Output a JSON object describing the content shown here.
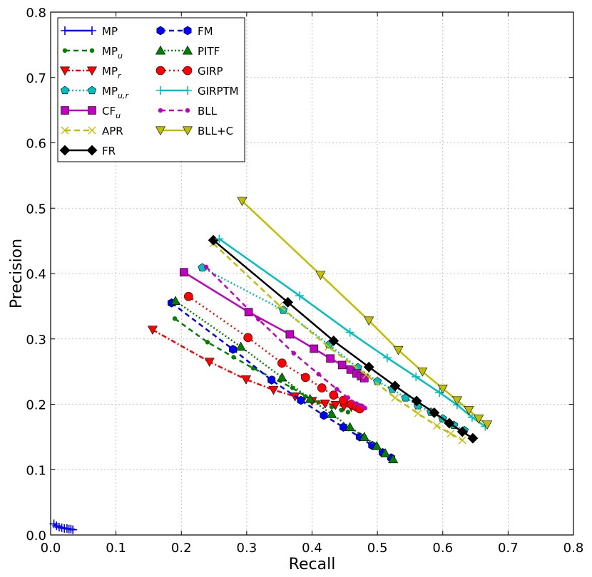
{
  "chart_data": {
    "type": "line",
    "title": "",
    "xlabel": "Recall",
    "ylabel": "Precision",
    "xlim": [
      0,
      0.8
    ],
    "ylim": [
      0,
      0.8
    ],
    "xticks": [
      "0.0",
      "0.1",
      "0.2",
      "0.3",
      "0.4",
      "0.5",
      "0.6",
      "0.7",
      "0.8"
    ],
    "yticks": [
      "0.0",
      "0.1",
      "0.2",
      "0.3",
      "0.4",
      "0.5",
      "0.6",
      "0.7",
      "0.8"
    ],
    "grid": true,
    "legend_position": "top-left",
    "series": [
      {
        "name": "MP",
        "base": "MP",
        "sub": "",
        "color": "#0000ff",
        "dash": "",
        "marker": "plus",
        "x": [
          0.005,
          0.009,
          0.013,
          0.017,
          0.021,
          0.025,
          0.028,
          0.031,
          0.034
        ],
        "y": [
          0.017,
          0.014,
          0.012,
          0.011,
          0.01,
          0.01,
          0.009,
          0.009,
          0.008
        ]
      },
      {
        "name": "MP_u",
        "base": "MP",
        "sub": "u",
        "color": "#008000",
        "dash": "7 5",
        "marker": "circle-small",
        "x": [
          0.19,
          0.24,
          0.28,
          0.31,
          0.34,
          0.37,
          0.39,
          0.41,
          0.43,
          0.445,
          0.455
        ],
        "y": [
          0.331,
          0.295,
          0.272,
          0.255,
          0.24,
          0.225,
          0.212,
          0.203,
          0.196,
          0.191,
          0.188
        ]
      },
      {
        "name": "MP_r",
        "base": "MP",
        "sub": "r",
        "color": "#ff0000",
        "dash": "7 3 2 3",
        "marker": "triangle-down",
        "x": [
          0.156,
          0.243,
          0.299,
          0.341,
          0.374,
          0.4,
          0.42,
          0.436,
          0.449,
          0.46,
          0.47
        ],
        "y": [
          0.314,
          0.265,
          0.238,
          0.222,
          0.212,
          0.205,
          0.201,
          0.199,
          0.197,
          0.196,
          0.195
        ]
      },
      {
        "name": "MP_u,r",
        "base": "MP",
        "sub": "u,r",
        "color": "#00bfbf",
        "dash": "2 3",
        "marker": "pentagon",
        "x": [
          0.232,
          0.356,
          0.426,
          0.47,
          0.5,
          0.523,
          0.543,
          0.562,
          0.582,
          0.6,
          0.617,
          0.633
        ],
        "y": [
          0.409,
          0.344,
          0.291,
          0.256,
          0.235,
          0.223,
          0.21,
          0.198,
          0.188,
          0.178,
          0.168,
          0.16
        ]
      },
      {
        "name": "CF_u",
        "base": "CF",
        "sub": "u",
        "color": "#bf00bf",
        "dash": "",
        "marker": "square",
        "x": [
          0.204,
          0.303,
          0.366,
          0.403,
          0.428,
          0.446,
          0.459,
          0.468,
          0.475,
          0.48
        ],
        "y": [
          0.402,
          0.341,
          0.307,
          0.285,
          0.27,
          0.26,
          0.253,
          0.247,
          0.243,
          0.24
        ]
      },
      {
        "name": "APR",
        "base": "APR",
        "sub": "",
        "color": "#bfbf00",
        "dash": "8 5",
        "marker": "x",
        "x": [
          0.249,
          0.35,
          0.425,
          0.483,
          0.527,
          0.562,
          0.591,
          0.612,
          0.63
        ],
        "y": [
          0.446,
          0.351,
          0.288,
          0.245,
          0.21,
          0.186,
          0.167,
          0.155,
          0.145
        ]
      },
      {
        "name": "FR",
        "base": "FR",
        "sub": "",
        "color": "#000000",
        "dash": "",
        "marker": "diamond",
        "x": [
          0.249,
          0.363,
          0.433,
          0.487,
          0.527,
          0.56,
          0.587,
          0.61,
          0.63,
          0.646
        ],
        "y": [
          0.451,
          0.356,
          0.297,
          0.257,
          0.228,
          0.205,
          0.187,
          0.171,
          0.158,
          0.148
        ]
      },
      {
        "name": "FM",
        "base": "FM",
        "sub": "",
        "color": "#0000ff",
        "dash": "7 5",
        "marker": "hexagon",
        "x": [
          0.185,
          0.279,
          0.338,
          0.383,
          0.418,
          0.448,
          0.473,
          0.492,
          0.508,
          0.521
        ],
        "y": [
          0.355,
          0.284,
          0.237,
          0.206,
          0.183,
          0.165,
          0.15,
          0.137,
          0.126,
          0.118
        ]
      },
      {
        "name": "PITF",
        "base": "PITF",
        "sub": "",
        "color": "#008000",
        "dash": "2 3",
        "marker": "triangle-up",
        "x": [
          0.191,
          0.291,
          0.354,
          0.397,
          0.43,
          0.458,
          0.48,
          0.499,
          0.512,
          0.524
        ],
        "y": [
          0.358,
          0.288,
          0.241,
          0.208,
          0.185,
          0.165,
          0.15,
          0.136,
          0.125,
          0.116
        ]
      },
      {
        "name": "GIRP",
        "base": "GIRP",
        "sub": "",
        "color": "#ff0000",
        "dash": "2 4",
        "marker": "circle",
        "x": [
          0.211,
          0.302,
          0.354,
          0.39,
          0.415,
          0.433,
          0.448,
          0.46,
          0.468,
          0.473
        ],
        "y": [
          0.365,
          0.302,
          0.263,
          0.241,
          0.225,
          0.214,
          0.206,
          0.2,
          0.196,
          0.193
        ]
      },
      {
        "name": "GIRPTM",
        "base": "GIRPTM",
        "sub": "",
        "color": "#00bfbf",
        "dash": "",
        "marker": "plus",
        "x": [
          0.258,
          0.381,
          0.458,
          0.515,
          0.559,
          0.595,
          0.622,
          0.645,
          0.665
        ],
        "y": [
          0.453,
          0.366,
          0.31,
          0.271,
          0.242,
          0.218,
          0.199,
          0.18,
          0.166
        ]
      },
      {
        "name": "BLL",
        "base": "BLL",
        "sub": "",
        "color": "#bf00bf",
        "dash": "7 5",
        "marker": "circle-small",
        "x": [
          0.238,
          0.318,
          0.372,
          0.41,
          0.438,
          0.455,
          0.468,
          0.477,
          0.481
        ],
        "y": [
          0.41,
          0.33,
          0.278,
          0.246,
          0.223,
          0.21,
          0.201,
          0.197,
          0.194
        ]
      },
      {
        "name": "BLL+C",
        "base": "BLL+C",
        "sub": "",
        "color": "#bfbf00",
        "dash": "",
        "marker": "triangle-down",
        "x": [
          0.293,
          0.413,
          0.487,
          0.532,
          0.569,
          0.6,
          0.622,
          0.64,
          0.655,
          0.668
        ],
        "y": [
          0.511,
          0.398,
          0.328,
          0.283,
          0.25,
          0.224,
          0.206,
          0.191,
          0.178,
          0.169
        ]
      }
    ]
  }
}
